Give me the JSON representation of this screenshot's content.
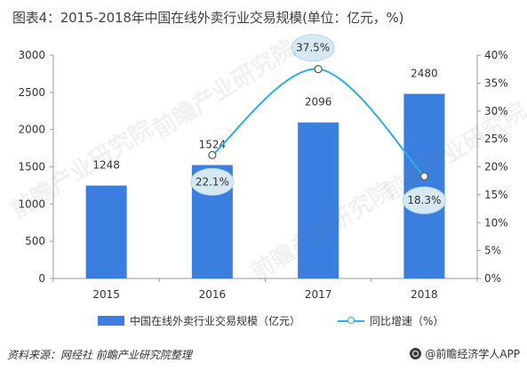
{
  "title": "图表4：2015-2018年中国在线外卖行业交易规模(单位：亿元，%)",
  "chart_data": {
    "type": "bar",
    "categories": [
      "2015",
      "2016",
      "2017",
      "2018"
    ],
    "series": [
      {
        "name": "中国在线外卖行业交易规模（亿元）",
        "type": "bar",
        "axis": "left",
        "values": [
          1248,
          1524,
          2096,
          2480
        ],
        "color": "#3a7fe0"
      },
      {
        "name": "同比增速（%）",
        "type": "line",
        "axis": "right",
        "values": [
          null,
          22.1,
          37.5,
          18.3
        ],
        "color": "#2bb0e6"
      }
    ],
    "bar_labels": [
      "1248",
      "1524",
      "2096",
      "2480"
    ],
    "line_labels": [
      "",
      "22.1%",
      "37.5%",
      "18.3%"
    ],
    "y_left": {
      "min": 0,
      "max": 3000,
      "ticks": [
        0,
        500,
        1000,
        1500,
        2000,
        2500,
        3000
      ]
    },
    "y_right": {
      "min": 0,
      "max": 40,
      "ticks": [
        "0%",
        "5%",
        "10%",
        "15%",
        "20%",
        "25%",
        "30%",
        "35%",
        "40%"
      ]
    },
    "grid": false,
    "legend_position": "bottom"
  },
  "legend": {
    "bar_label": "中国在线外卖行业交易规模（亿元）",
    "line_label": "同比增速（%）"
  },
  "footer": {
    "source": "资料来源：网经社 前瞻产业研究院整理",
    "brand": "@前瞻经济学人APP"
  },
  "watermark": "前瞻产业研究院"
}
